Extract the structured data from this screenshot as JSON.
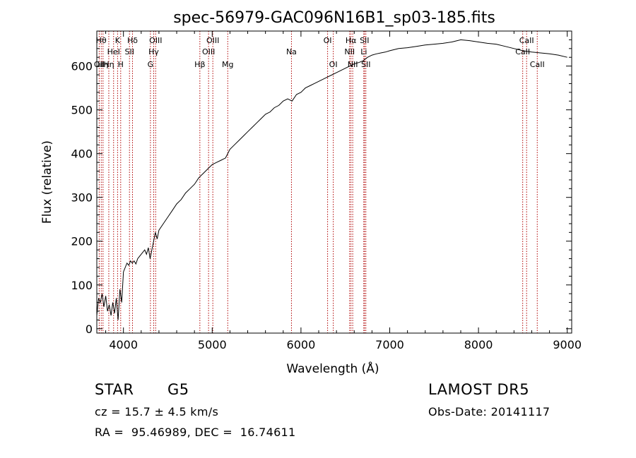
{
  "chart_data": {
    "type": "line",
    "title": "spec-56979-GAC096N16B1_sp03-185.fits",
    "xlabel": "Wavelength (Å)",
    "ylabel": "Flux (relative)",
    "xlim": [
      3700,
      9050
    ],
    "ylim": [
      -10,
      680
    ],
    "xticks": [
      4000,
      5000,
      6000,
      7000,
      8000,
      9000
    ],
    "yticks": [
      0,
      100,
      200,
      300,
      400,
      500,
      600
    ],
    "series": [
      {
        "points": [
          [
            3700,
            30
          ],
          [
            3720,
            70
          ],
          [
            3740,
            60
          ],
          [
            3760,
            80
          ],
          [
            3780,
            50
          ],
          [
            3800,
            75
          ],
          [
            3820,
            40
          ],
          [
            3840,
            55
          ],
          [
            3860,
            30
          ],
          [
            3880,
            60
          ],
          [
            3900,
            35
          ],
          [
            3920,
            70
          ],
          [
            3940,
            20
          ],
          [
            3960,
            90
          ],
          [
            3980,
            60
          ],
          [
            4000,
            130
          ],
          [
            4020,
            140
          ],
          [
            4040,
            150
          ],
          [
            4060,
            145
          ],
          [
            4080,
            155
          ],
          [
            4100,
            150
          ],
          [
            4120,
            155
          ],
          [
            4140,
            148
          ],
          [
            4160,
            160
          ],
          [
            4180,
            165
          ],
          [
            4200,
            170
          ],
          [
            4220,
            175
          ],
          [
            4240,
            180
          ],
          [
            4260,
            170
          ],
          [
            4280,
            185
          ],
          [
            4300,
            160
          ],
          [
            4320,
            180
          ],
          [
            4340,
            200
          ],
          [
            4360,
            220
          ],
          [
            4380,
            205
          ],
          [
            4400,
            225
          ],
          [
            4450,
            240
          ],
          [
            4500,
            255
          ],
          [
            4550,
            270
          ],
          [
            4600,
            285
          ],
          [
            4650,
            295
          ],
          [
            4700,
            310
          ],
          [
            4750,
            320
          ],
          [
            4800,
            330
          ],
          [
            4850,
            345
          ],
          [
            4900,
            355
          ],
          [
            4950,
            365
          ],
          [
            5000,
            375
          ],
          [
            5050,
            380
          ],
          [
            5100,
            385
          ],
          [
            5150,
            390
          ],
          [
            5200,
            410
          ],
          [
            5250,
            420
          ],
          [
            5300,
            430
          ],
          [
            5350,
            440
          ],
          [
            5400,
            450
          ],
          [
            5450,
            460
          ],
          [
            5500,
            470
          ],
          [
            5550,
            480
          ],
          [
            5600,
            490
          ],
          [
            5650,
            495
          ],
          [
            5700,
            505
          ],
          [
            5750,
            510
          ],
          [
            5800,
            520
          ],
          [
            5850,
            525
          ],
          [
            5900,
            520
          ],
          [
            5950,
            535
          ],
          [
            6000,
            540
          ],
          [
            6050,
            550
          ],
          [
            6100,
            555
          ],
          [
            6150,
            560
          ],
          [
            6200,
            565
          ],
          [
            6250,
            570
          ],
          [
            6300,
            575
          ],
          [
            6350,
            580
          ],
          [
            6400,
            585
          ],
          [
            6450,
            590
          ],
          [
            6500,
            595
          ],
          [
            6550,
            600
          ],
          [
            6600,
            605
          ],
          [
            6650,
            608
          ],
          [
            6700,
            612
          ],
          [
            6750,
            620
          ],
          [
            6800,
            625
          ],
          [
            6850,
            628
          ],
          [
            6900,
            630
          ],
          [
            6950,
            632
          ],
          [
            7000,
            635
          ],
          [
            7100,
            640
          ],
          [
            7200,
            642
          ],
          [
            7300,
            645
          ],
          [
            7400,
            648
          ],
          [
            7500,
            650
          ],
          [
            7600,
            652
          ],
          [
            7700,
            655
          ],
          [
            7800,
            660
          ],
          [
            7900,
            658
          ],
          [
            8000,
            655
          ],
          [
            8100,
            652
          ],
          [
            8200,
            650
          ],
          [
            8300,
            645
          ],
          [
            8400,
            640
          ],
          [
            8500,
            635
          ],
          [
            8600,
            632
          ],
          [
            8700,
            630
          ],
          [
            8800,
            628
          ],
          [
            8900,
            625
          ],
          [
            9000,
            620
          ]
        ]
      }
    ],
    "lines": [
      {
        "x": 3727,
        "label": "OII",
        "row": 3
      },
      {
        "x": 3750,
        "label": "Hθ",
        "row": 1
      },
      {
        "x": 3770,
        "label": "Hη",
        "row": 3
      },
      {
        "x": 3835,
        "label": "Hη",
        "row": 3
      },
      {
        "x": 3889,
        "label": "HeI",
        "row": 2
      },
      {
        "x": 3934,
        "label": "K",
        "row": 1
      },
      {
        "x": 3969,
        "label": "H",
        "row": 3
      },
      {
        "x": 4068,
        "label": "SII",
        "row": 2
      },
      {
        "x": 4102,
        "label": "Hδ",
        "row": 1
      },
      {
        "x": 4304,
        "label": "G",
        "row": 3
      },
      {
        "x": 4341,
        "label": "Hγ",
        "row": 2
      },
      {
        "x": 4363,
        "label": "OIII",
        "row": 1
      },
      {
        "x": 4861,
        "label": "Hβ",
        "row": 3
      },
      {
        "x": 4959,
        "label": "OIII",
        "row": 2
      },
      {
        "x": 5007,
        "label": "OIII",
        "row": 1
      },
      {
        "x": 5175,
        "label": "Mg",
        "row": 3
      },
      {
        "x": 5893,
        "label": "Na",
        "row": 2
      },
      {
        "x": 6300,
        "label": "OI",
        "row": 1
      },
      {
        "x": 6364,
        "label": "OI",
        "row": 3
      },
      {
        "x": 6548,
        "label": "NII",
        "row": 2
      },
      {
        "x": 6563,
        "label": "Hα",
        "row": 1
      },
      {
        "x": 6583,
        "label": "NII",
        "row": 3
      },
      {
        "x": 6708,
        "label": "Li",
        "row": 2
      },
      {
        "x": 6716,
        "label": "SII",
        "row": 1
      },
      {
        "x": 6731,
        "label": "SII",
        "row": 3
      },
      {
        "x": 8498,
        "label": "CaII",
        "row": 2
      },
      {
        "x": 8542,
        "label": "CaII",
        "row": 1
      },
      {
        "x": 8662,
        "label": "CaII",
        "row": 3
      }
    ]
  },
  "info": {
    "class": "STAR",
    "subclass": "G5",
    "survey": "LAMOST DR5",
    "redshift": "cz = 15.7 ± 4.5 km/s",
    "obs_date": "Obs-Date: 20141117",
    "coords": "RA =  95.46989, DEC =  16.74611"
  }
}
